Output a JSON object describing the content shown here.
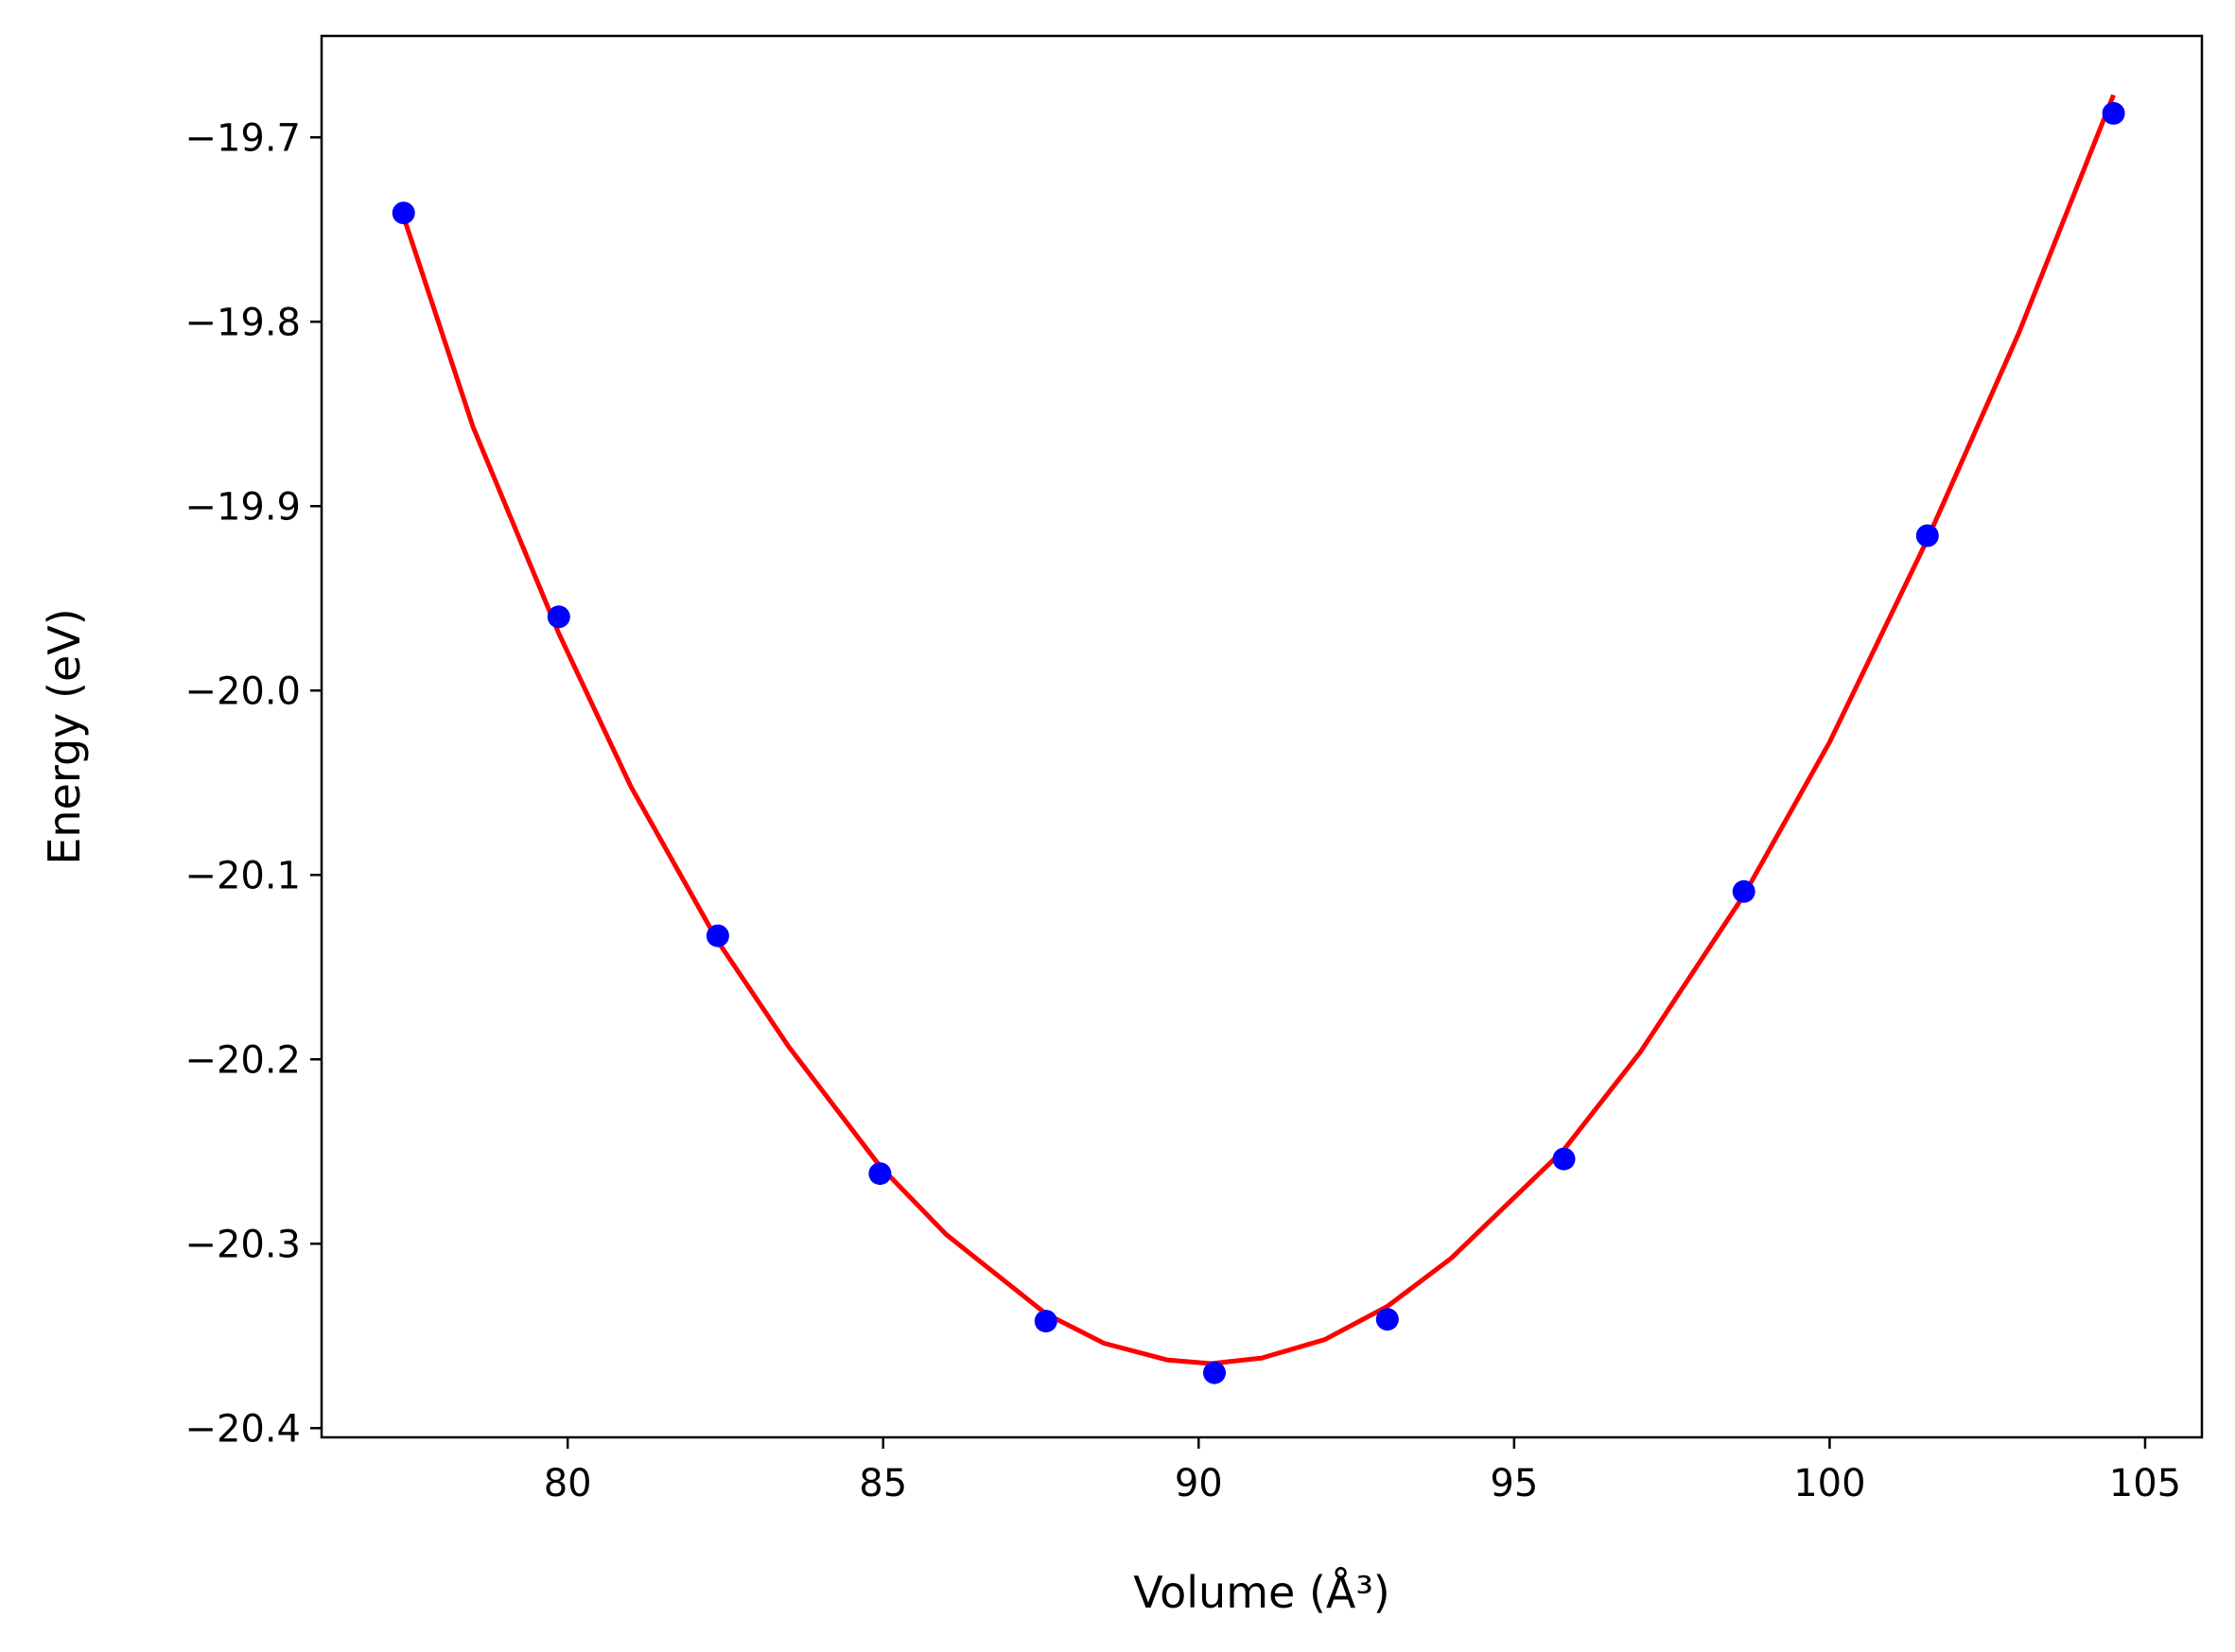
{
  "chart_data": {
    "type": "scatter",
    "title": "",
    "xlabel": "Volume (Å³)",
    "ylabel": "Energy (eV)",
    "xlim": [
      76.1,
      105.9
    ],
    "ylim": [
      -20.405,
      -19.645
    ],
    "xticks": [
      80,
      85,
      90,
      95,
      100,
      105
    ],
    "yticks": [
      -20.4,
      -20.3,
      -20.2,
      -20.1,
      -20.0,
      -19.9,
      -19.8,
      -19.7
    ],
    "xtick_labels": [
      "80",
      "85",
      "90",
      "95",
      "100",
      "105"
    ],
    "ytick_labels": [
      "−20.4",
      "−20.3",
      "−20.2",
      "−20.1",
      "−20.0",
      "−19.9",
      "−19.8",
      "−19.7"
    ],
    "grid": false,
    "series": [
      {
        "kind": "points",
        "color": "#0000ff",
        "x": [
          77.4,
          79.86,
          82.38,
          84.95,
          87.58,
          90.25,
          92.99,
          95.79,
          98.64,
          101.55,
          104.5
        ],
        "y": [
          -19.741,
          -19.96,
          -20.133,
          -20.262,
          -20.342,
          -20.37,
          -20.341,
          -20.254,
          -20.109,
          -19.916,
          -19.687
        ]
      },
      {
        "kind": "fit-curve",
        "color": "#ff0000",
        "x": [
          77.4,
          78.5,
          79.86,
          81.0,
          82.38,
          83.5,
          84.95,
          86.0,
          87.58,
          88.5,
          89.5,
          90.2,
          91.0,
          92.0,
          92.99,
          94.0,
          95.79,
          97.0,
          98.64,
          100.0,
          101.55,
          103.0,
          104.5
        ],
        "y": [
          -19.743,
          -19.857,
          -19.969,
          -20.052,
          -20.136,
          -20.193,
          -20.258,
          -20.295,
          -20.338,
          -20.354,
          -20.363,
          -20.365,
          -20.362,
          -20.352,
          -20.334,
          -20.308,
          -20.249,
          -20.196,
          -20.111,
          -20.028,
          -19.918,
          -19.806,
          -19.677
        ]
      }
    ]
  }
}
